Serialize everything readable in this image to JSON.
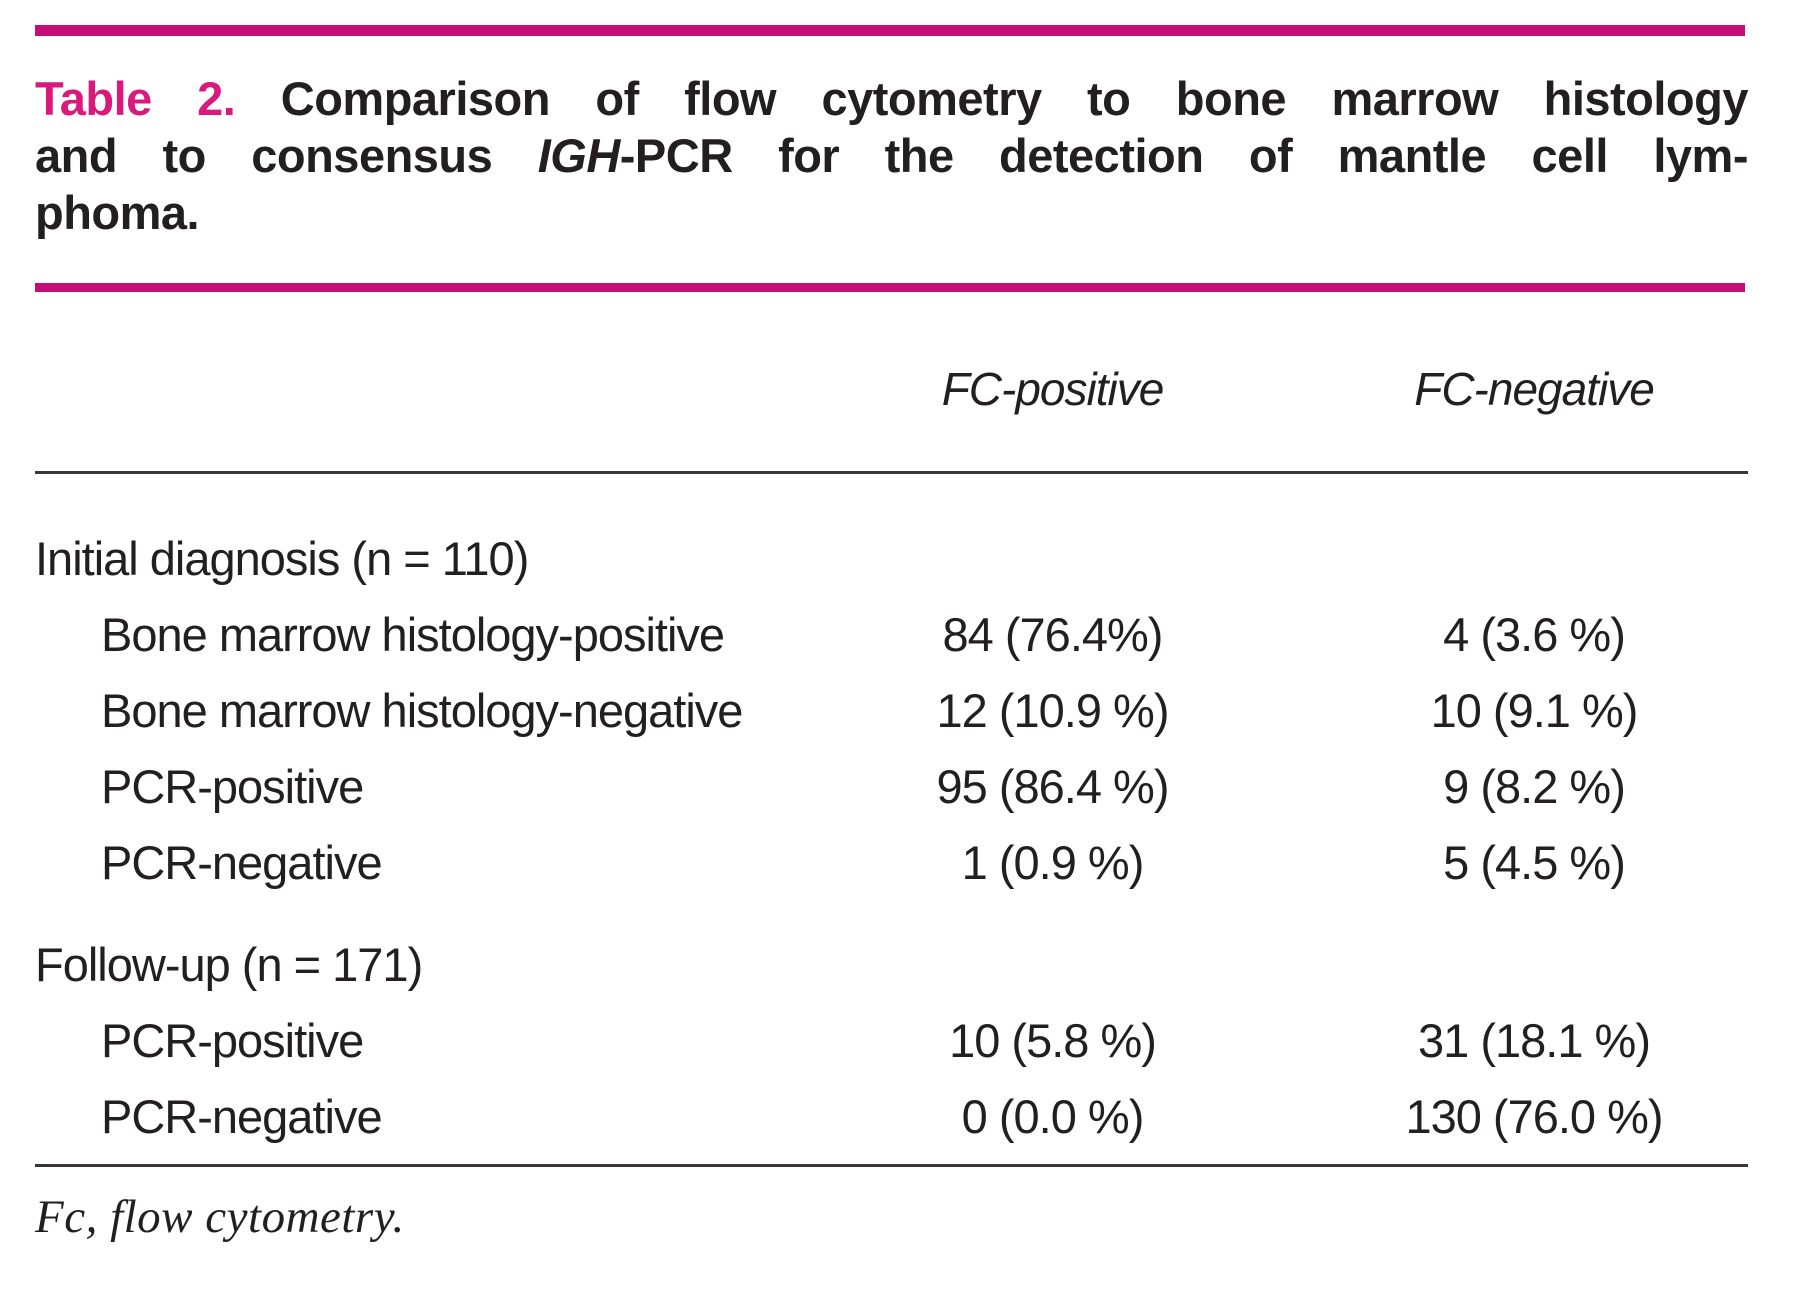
{
  "title": {
    "label": "Table 2.",
    "line1_rest": "Comparison of flow cytometry to bone marrow histology",
    "line2_pre": "and to consensus ",
    "line2_igh": "IGH",
    "line2_post": "-PCR for the detection of mantle cell lym-",
    "line3": "phoma."
  },
  "columns": [
    "FC-positive",
    "FC-negative"
  ],
  "sections": [
    {
      "header": "Initial diagnosis (n = 110)",
      "rows": [
        {
          "label": "Bone marrow histology-positive",
          "fc_positive": "84 (76.4%)",
          "fc_negative": "4 (3.6 %)"
        },
        {
          "label": "Bone marrow histology-negative",
          "fc_positive": "12 (10.9 %)",
          "fc_negative": "10 (9.1 %)"
        },
        {
          "label": "PCR-positive",
          "fc_positive": "95 (86.4 %)",
          "fc_negative": "9 (8.2 %)"
        },
        {
          "label": "PCR-negative",
          "fc_positive": "1 (0.9 %)",
          "fc_negative": "5 (4.5 %)"
        }
      ]
    },
    {
      "header": "Follow-up (n = 171)",
      "rows": [
        {
          "label": "PCR-positive",
          "fc_positive": "10 (5.8 %)",
          "fc_negative": "31 (18.1 %)"
        },
        {
          "label": "PCR-negative",
          "fc_positive": "0 (0.0 %)",
          "fc_negative": "130 (76.0 %)"
        }
      ]
    }
  ],
  "footnote": "Fc, flow cytometry.",
  "colors": {
    "accent_bar": "#c60d77",
    "title_label": "#d91a7c",
    "text": "#231f20",
    "rule": "#3a3637"
  }
}
